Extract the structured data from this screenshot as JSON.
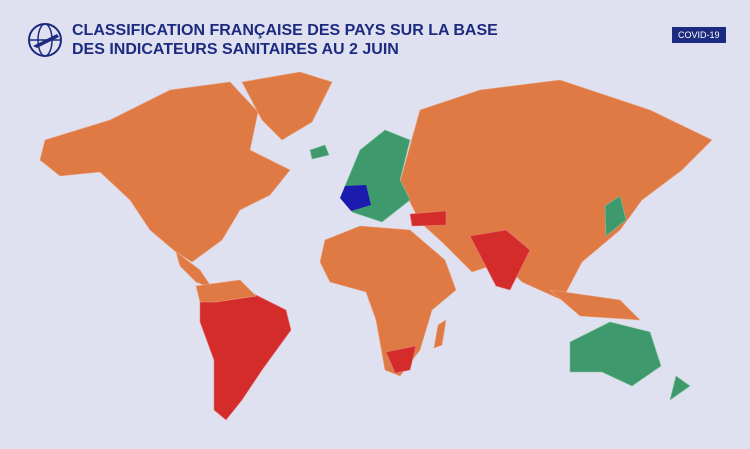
{
  "header": {
    "title_lines": [
      "CLASSIFICATION FRANÇAISE DES PAYS SUR LA BASE",
      "DES INDICATEURS SANITAIRES AU 2 JUIN"
    ],
    "badge": "COVID-19"
  }
}
